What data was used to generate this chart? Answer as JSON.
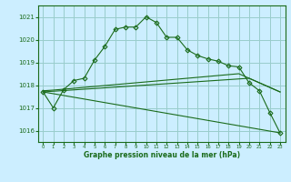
{
  "title": "Graphe pression niveau de la mer (hPa)",
  "bg_color": "#cceeff",
  "grid_color": "#99cccc",
  "line_color": "#1a6b1a",
  "marker_color": "#1a6b1a",
  "xlim": [
    -0.5,
    23.5
  ],
  "ylim": [
    1015.5,
    1021.5
  ],
  "yticks": [
    1016,
    1017,
    1018,
    1019,
    1020,
    1021
  ],
  "xticks": [
    0,
    1,
    2,
    3,
    4,
    5,
    6,
    7,
    8,
    9,
    10,
    11,
    12,
    13,
    14,
    15,
    16,
    17,
    18,
    19,
    20,
    21,
    22,
    23
  ],
  "xtick_labels": [
    "0",
    "1",
    "2",
    "3",
    "4",
    "5",
    "6",
    "7",
    "8",
    "9",
    "10",
    "11",
    "12",
    "13",
    "14",
    "15",
    "16",
    "17",
    "18",
    "19",
    "20",
    "21",
    "22",
    "23"
  ],
  "series": [
    {
      "x": [
        0,
        1,
        2,
        3,
        4,
        5,
        6,
        7,
        8,
        9,
        10,
        11,
        12,
        13,
        14,
        15,
        16,
        17,
        18,
        19,
        20,
        21,
        22,
        23
      ],
      "y": [
        1017.7,
        1017.0,
        1017.8,
        1018.2,
        1018.3,
        1019.1,
        1019.7,
        1020.45,
        1020.55,
        1020.55,
        1021.0,
        1020.75,
        1020.1,
        1020.1,
        1019.55,
        1019.3,
        1019.15,
        1019.05,
        1018.85,
        1018.8,
        1018.1,
        1017.75,
        1016.8,
        1015.9
      ],
      "marker": "D",
      "markersize": 2.5
    },
    {
      "x": [
        0,
        1,
        2,
        3,
        4,
        5,
        6,
        7,
        8,
        9,
        10,
        11,
        12,
        13,
        14,
        15,
        16,
        17,
        18,
        19,
        20,
        21,
        22,
        23
      ],
      "y": [
        1017.75,
        1017.78,
        1017.82,
        1017.86,
        1017.9,
        1017.94,
        1017.98,
        1018.02,
        1018.06,
        1018.1,
        1018.14,
        1018.18,
        1018.22,
        1018.26,
        1018.3,
        1018.34,
        1018.38,
        1018.42,
        1018.46,
        1018.5,
        1018.3,
        1018.1,
        1017.9,
        1017.7
      ],
      "marker": null,
      "markersize": 0
    },
    {
      "x": [
        0,
        1,
        2,
        3,
        4,
        5,
        6,
        7,
        8,
        9,
        10,
        11,
        12,
        13,
        14,
        15,
        16,
        17,
        18,
        19,
        20,
        21,
        22,
        23
      ],
      "y": [
        1017.7,
        1017.73,
        1017.76,
        1017.79,
        1017.82,
        1017.85,
        1017.88,
        1017.91,
        1017.94,
        1017.97,
        1018.0,
        1018.03,
        1018.06,
        1018.09,
        1018.12,
        1018.15,
        1018.18,
        1018.21,
        1018.24,
        1018.27,
        1018.3,
        1018.1,
        1017.9,
        1017.7
      ],
      "marker": null,
      "markersize": 0
    },
    {
      "x": [
        0,
        23
      ],
      "y": [
        1017.7,
        1015.9
      ],
      "marker": null,
      "markersize": 0
    }
  ]
}
